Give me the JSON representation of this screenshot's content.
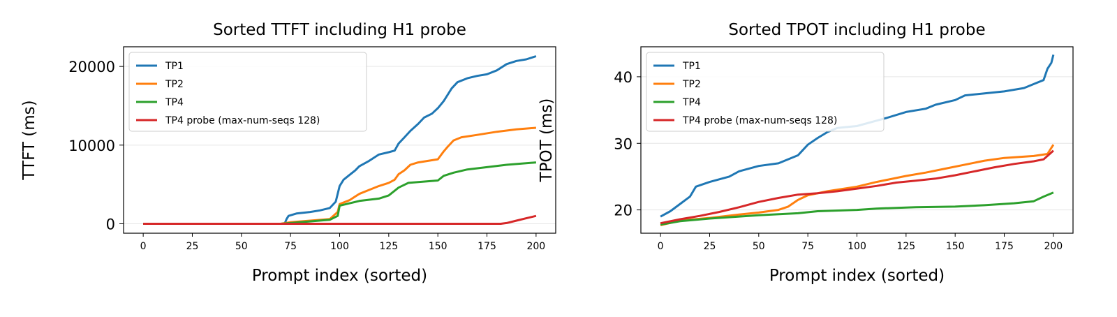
{
  "colors": {
    "TP1": "#1f77b4",
    "TP2": "#ff7f0e",
    "TP4": "#2ca02c",
    "TP4 probe (max-num-seqs 128)": "#d62728"
  },
  "chart_data": [
    {
      "type": "line",
      "title": "Sorted TTFT including H1 probe",
      "xlabel": "Prompt index (sorted)",
      "ylabel": "TTFT (ms)",
      "xlim": [
        -10,
        210
      ],
      "ylim": [
        -1200,
        22500
      ],
      "xticks": [
        0,
        25,
        50,
        75,
        100,
        125,
        150,
        175,
        200
      ],
      "yticks": [
        0,
        10000,
        20000
      ],
      "grid": "y",
      "legend": "top-left",
      "series": [
        {
          "name": "TP1",
          "color": "#1f77b4",
          "points": [
            [
              0,
              0
            ],
            [
              72,
              0
            ],
            [
              73,
              600
            ],
            [
              74,
              1000
            ],
            [
              78,
              1300
            ],
            [
              85,
              1500
            ],
            [
              90,
              1700
            ],
            [
              95,
              2000
            ],
            [
              98,
              2800
            ],
            [
              100,
              4800
            ],
            [
              102,
              5600
            ],
            [
              105,
              6200
            ],
            [
              108,
              6800
            ],
            [
              110,
              7300
            ],
            [
              115,
              8000
            ],
            [
              120,
              8800
            ],
            [
              125,
              9100
            ],
            [
              128,
              9300
            ],
            [
              130,
              10200
            ],
            [
              133,
              11000
            ],
            [
              136,
              11800
            ],
            [
              140,
              12700
            ],
            [
              143,
              13500
            ],
            [
              147,
              14000
            ],
            [
              150,
              14700
            ],
            [
              153,
              15600
            ],
            [
              157,
              17200
            ],
            [
              160,
              18000
            ],
            [
              165,
              18500
            ],
            [
              170,
              18800
            ],
            [
              175,
              19000
            ],
            [
              180,
              19500
            ],
            [
              185,
              20300
            ],
            [
              190,
              20700
            ],
            [
              195,
              20900
            ],
            [
              200,
              21300
            ]
          ]
        },
        {
          "name": "TP2",
          "color": "#ff7f0e",
          "points": [
            [
              0,
              0
            ],
            [
              70,
              0
            ],
            [
              75,
              200
            ],
            [
              85,
              400
            ],
            [
              95,
              600
            ],
            [
              99,
              1500
            ],
            [
              100,
              2500
            ],
            [
              105,
              3000
            ],
            [
              110,
              3800
            ],
            [
              115,
              4300
            ],
            [
              120,
              4800
            ],
            [
              125,
              5200
            ],
            [
              128,
              5600
            ],
            [
              130,
              6300
            ],
            [
              133,
              6800
            ],
            [
              136,
              7500
            ],
            [
              140,
              7800
            ],
            [
              145,
              8000
            ],
            [
              150,
              8200
            ],
            [
              153,
              9200
            ],
            [
              155,
              9800
            ],
            [
              158,
              10600
            ],
            [
              162,
              11000
            ],
            [
              170,
              11300
            ],
            [
              180,
              11700
            ],
            [
              190,
              12000
            ],
            [
              200,
              12200
            ]
          ]
        },
        {
          "name": "TP4",
          "color": "#2ca02c",
          "points": [
            [
              0,
              0
            ],
            [
              70,
              0
            ],
            [
              80,
              200
            ],
            [
              95,
              500
            ],
            [
              99,
              1000
            ],
            [
              100,
              2300
            ],
            [
              105,
              2600
            ],
            [
              110,
              2900
            ],
            [
              120,
              3200
            ],
            [
              125,
              3600
            ],
            [
              128,
              4200
            ],
            [
              130,
              4600
            ],
            [
              135,
              5200
            ],
            [
              145,
              5400
            ],
            [
              150,
              5500
            ],
            [
              153,
              6100
            ],
            [
              158,
              6500
            ],
            [
              165,
              6900
            ],
            [
              175,
              7200
            ],
            [
              185,
              7500
            ],
            [
              200,
              7800
            ]
          ]
        },
        {
          "name": "TP4 probe (max-num-seqs 128)",
          "color": "#d62728",
          "points": [
            [
              0,
              0
            ],
            [
              182,
              0
            ],
            [
              185,
              100
            ],
            [
              190,
              400
            ],
            [
              195,
              700
            ],
            [
              200,
              1000
            ]
          ]
        }
      ]
    },
    {
      "type": "line",
      "title": "Sorted TPOT including H1 probe",
      "xlabel": "Prompt index (sorted)",
      "ylabel": "TPOT (ms)",
      "xlim": [
        -10,
        210
      ],
      "ylim": [
        16.5,
        44.5
      ],
      "xticks": [
        0,
        25,
        50,
        75,
        100,
        125,
        150,
        175,
        200
      ],
      "yticks": [
        20,
        30,
        40
      ],
      "grid": "y",
      "legend": "top-left",
      "series": [
        {
          "name": "TP1",
          "color": "#1f77b4",
          "points": [
            [
              0,
              19.0
            ],
            [
              5,
              19.8
            ],
            [
              10,
              20.9
            ],
            [
              15,
              22.0
            ],
            [
              18,
              23.5
            ],
            [
              25,
              24.2
            ],
            [
              35,
              25.0
            ],
            [
              40,
              25.8
            ],
            [
              50,
              26.6
            ],
            [
              60,
              27.0
            ],
            [
              70,
              28.2
            ],
            [
              75,
              29.8
            ],
            [
              80,
              30.8
            ],
            [
              85,
              31.7
            ],
            [
              90,
              32.3
            ],
            [
              100,
              32.6
            ],
            [
              110,
              33.4
            ],
            [
              115,
              33.8
            ],
            [
              125,
              34.7
            ],
            [
              135,
              35.2
            ],
            [
              140,
              35.8
            ],
            [
              150,
              36.5
            ],
            [
              155,
              37.2
            ],
            [
              165,
              37.5
            ],
            [
              175,
              37.8
            ],
            [
              185,
              38.3
            ],
            [
              190,
              38.9
            ],
            [
              195,
              39.5
            ],
            [
              197,
              41.2
            ],
            [
              199,
              42.1
            ],
            [
              200,
              43.3
            ]
          ]
        },
        {
          "name": "TP2",
          "color": "#ff7f0e",
          "points": [
            [
              0,
              17.7
            ],
            [
              10,
              18.4
            ],
            [
              25,
              18.8
            ],
            [
              40,
              19.3
            ],
            [
              50,
              19.6
            ],
            [
              60,
              20.0
            ],
            [
              65,
              20.5
            ],
            [
              70,
              21.5
            ],
            [
              75,
              22.2
            ],
            [
              85,
              22.8
            ],
            [
              100,
              23.5
            ],
            [
              110,
              24.2
            ],
            [
              125,
              25.1
            ],
            [
              135,
              25.6
            ],
            [
              145,
              26.2
            ],
            [
              155,
              26.8
            ],
            [
              165,
              27.4
            ],
            [
              175,
              27.8
            ],
            [
              190,
              28.1
            ],
            [
              197,
              28.4
            ],
            [
              200,
              29.8
            ]
          ]
        },
        {
          "name": "TP4",
          "color": "#2ca02c",
          "points": [
            [
              0,
              17.8
            ],
            [
              10,
              18.3
            ],
            [
              25,
              18.7
            ],
            [
              50,
              19.2
            ],
            [
              70,
              19.5
            ],
            [
              80,
              19.8
            ],
            [
              100,
              20.0
            ],
            [
              110,
              20.2
            ],
            [
              130,
              20.4
            ],
            [
              150,
              20.5
            ],
            [
              165,
              20.7
            ],
            [
              180,
              21.0
            ],
            [
              190,
              21.3
            ],
            [
              195,
              22.0
            ],
            [
              200,
              22.6
            ]
          ]
        },
        {
          "name": "TP4 probe (max-num-seqs 128)",
          "color": "#d62728",
          "points": [
            [
              0,
              18.0
            ],
            [
              10,
              18.6
            ],
            [
              20,
              19.1
            ],
            [
              30,
              19.7
            ],
            [
              40,
              20.4
            ],
            [
              50,
              21.2
            ],
            [
              60,
              21.8
            ],
            [
              70,
              22.3
            ],
            [
              80,
              22.5
            ],
            [
              90,
              22.8
            ],
            [
              100,
              23.2
            ],
            [
              110,
              23.6
            ],
            [
              120,
              24.1
            ],
            [
              130,
              24.4
            ],
            [
              140,
              24.7
            ],
            [
              150,
              25.2
            ],
            [
              160,
              25.8
            ],
            [
              170,
              26.4
            ],
            [
              180,
              26.9
            ],
            [
              190,
              27.3
            ],
            [
              195,
              27.6
            ],
            [
              200,
              28.9
            ]
          ]
        }
      ]
    }
  ]
}
